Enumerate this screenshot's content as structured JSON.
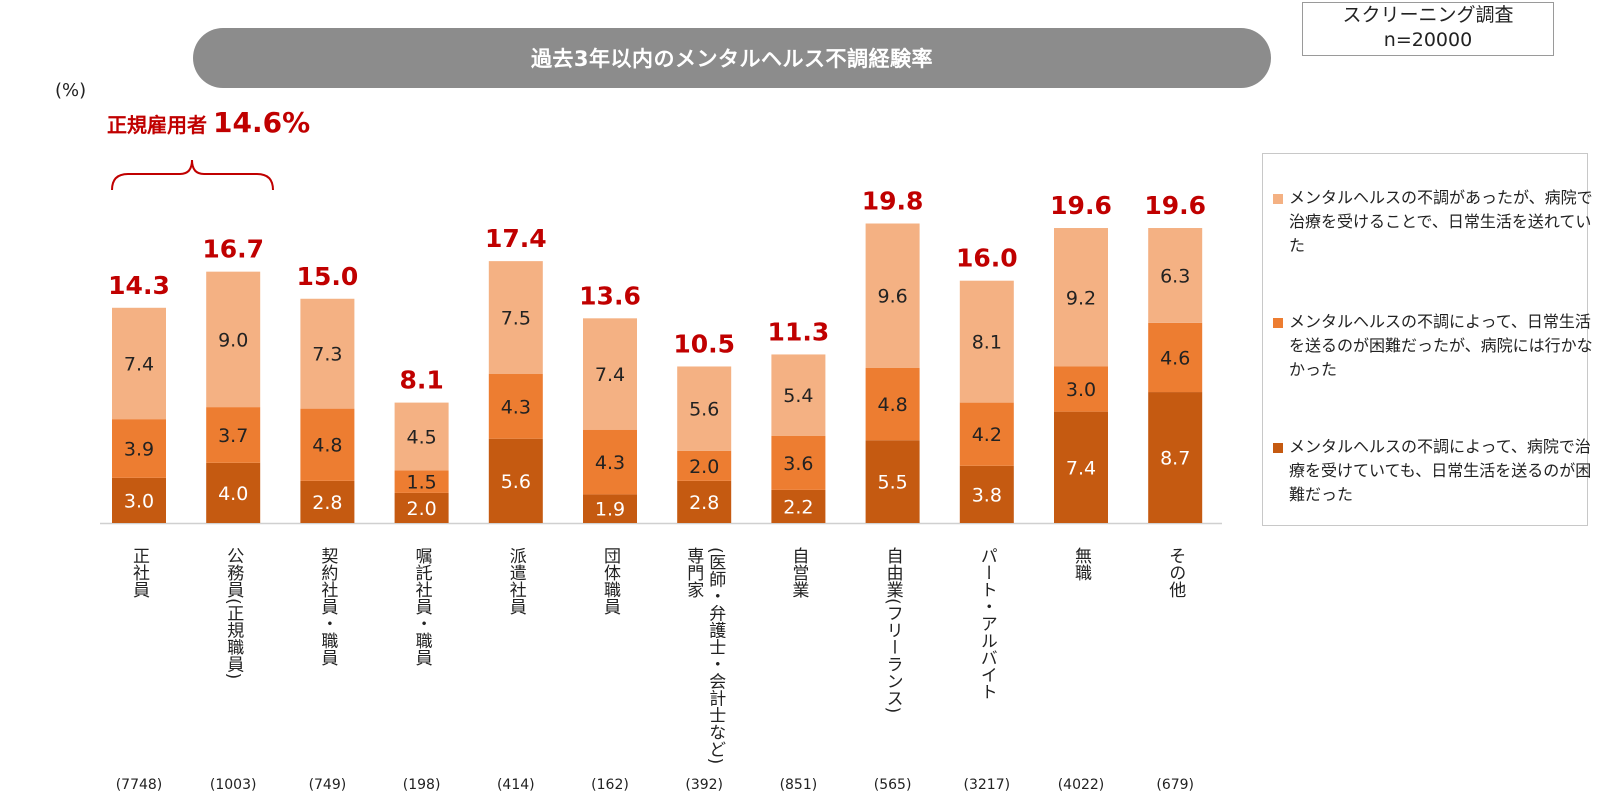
{
  "title": "過去3年以内のメンタルヘルス不調経験率",
  "survey": {
    "line1": "スクリーニング調査",
    "line2": "n=20000"
  },
  "unit": "(%)",
  "regular_employees": {
    "label": "正規雇用者",
    "value": "14.6%"
  },
  "colors": {
    "light": "#f4b183",
    "medium": "#ed7d31",
    "dark": "#c55a11",
    "total": "#c00000"
  },
  "legend": [
    {
      "color": "#f4b183",
      "text": "メンタルヘルスの不調があったが、病院で治療を受けることで、日常生活を送れていた"
    },
    {
      "color": "#ed7d31",
      "text": "メンタルヘルスの不調によって、日常生活を送るのが困難だったが、病院には行かなかった"
    },
    {
      "color": "#c55a11",
      "text": "メンタルヘルスの不調によって、病院で治療を受けていても、日常生活を送るのが困難だった"
    }
  ],
  "chart_data": {
    "type": "bar",
    "stacked": true,
    "categories": [
      "正社員",
      "公務員(正規職員)",
      "契約社員・職員",
      "嘱託社員・職員",
      "派遣社員",
      "団体職員",
      "専門家(医師・弁護士・会計士など)",
      "自営業",
      "自由業(フリーランス)",
      "パート・アルバイト",
      "無職",
      "その他"
    ],
    "category_lines": [
      [
        "正社員"
      ],
      [
        "公務員(正規職員)"
      ],
      [
        "契約社員・職員"
      ],
      [
        "嘱託社員・職員"
      ],
      [
        "派遣社員"
      ],
      [
        "団体職員"
      ],
      [
        "専門家",
        "(医師・弁護士・会計士など)"
      ],
      [
        "自営業"
      ],
      [
        "自由業(フリーランス)"
      ],
      [
        "パート・アルバイト"
      ],
      [
        "無職"
      ],
      [
        "その他"
      ]
    ],
    "sample_sizes": [
      "(7748)",
      "(1003)",
      "(749)",
      "(198)",
      "(414)",
      "(162)",
      "(392)",
      "(851)",
      "(565)",
      "(3217)",
      "(4022)",
      "(679)"
    ],
    "series": [
      {
        "color": "#c55a11",
        "values": [
          3.0,
          4.0,
          2.8,
          2.0,
          5.6,
          1.9,
          2.8,
          2.2,
          5.5,
          3.8,
          7.4,
          8.7
        ]
      },
      {
        "color": "#ed7d31",
        "values": [
          3.9,
          3.7,
          4.8,
          1.5,
          4.3,
          4.3,
          2.0,
          3.6,
          4.8,
          4.2,
          3.0,
          4.6
        ]
      },
      {
        "color": "#f4b183",
        "values": [
          7.4,
          9.0,
          7.3,
          4.5,
          7.5,
          7.4,
          5.6,
          5.4,
          9.6,
          8.1,
          9.2,
          6.3
        ]
      }
    ],
    "totals": [
      14.3,
      16.7,
      15.0,
      8.1,
      17.4,
      13.6,
      10.5,
      11.3,
      19.8,
      16.0,
      19.6,
      19.6
    ],
    "ylim": [
      0,
      20
    ]
  }
}
